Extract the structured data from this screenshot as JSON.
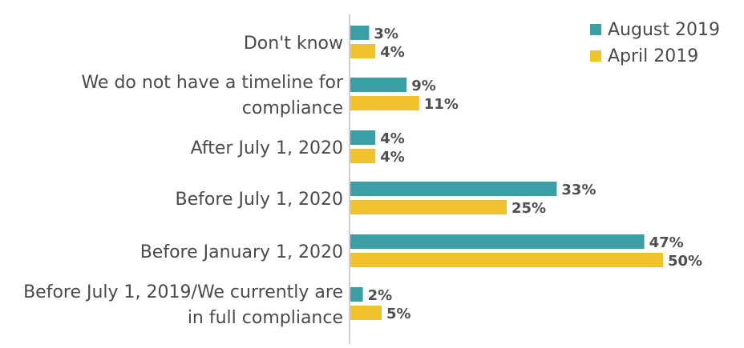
{
  "chart_data": {
    "type": "bar",
    "orientation": "horizontal",
    "categories": [
      [
        "Don't know"
      ],
      [
        "We do not have a timeline for",
        "compliance"
      ],
      [
        "After July 1, 2020"
      ],
      [
        "Before July 1, 2020"
      ],
      [
        "Before January 1, 2020"
      ],
      [
        "Before July 1, 2019/We currently are",
        "in full compliance"
      ]
    ],
    "series": [
      {
        "name": "August 2019",
        "color": "#3a9ea5",
        "values": [
          3,
          9,
          4,
          33,
          47,
          2
        ]
      },
      {
        "name": "April 2019",
        "color": "#f0c22b",
        "values": [
          4,
          11,
          4,
          25,
          50,
          5
        ]
      }
    ],
    "value_suffix": "%",
    "xlim": [
      0,
      50
    ],
    "legend_position": "top-right",
    "grid": false,
    "axis_color": "#bfbfbf"
  }
}
